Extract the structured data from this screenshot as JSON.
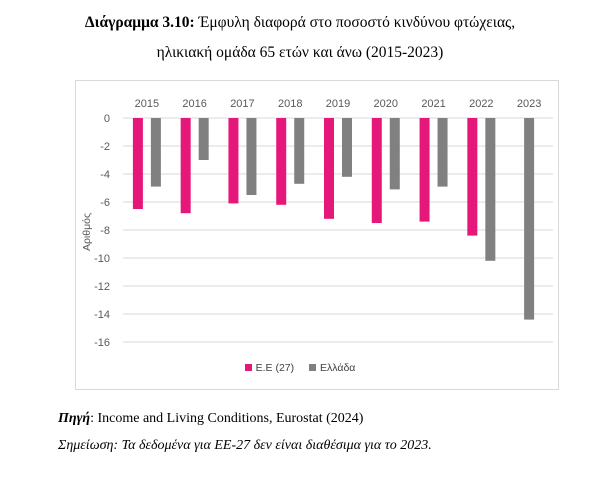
{
  "title": {
    "prefix": "Διάγραμμα 3.10:",
    "line1": "Έμφυλη διαφορά στο ποσοστό κινδύνου φτώχειας,",
    "line2": "ηλικιακή ομάδα 65 ετών και άνω (2015-2023)"
  },
  "source": {
    "label": "Πηγή",
    "text": ": Income and Living Conditions, Eurostat (2024)"
  },
  "note": "Σημείωση: Τα δεδομένα για ΕΕ-27 δεν είναι διαθέσιμα για το 2023.",
  "colors": {
    "eu": "#e6177b",
    "greece": "#808080",
    "grid": "#d9d9d9",
    "text": "#595959"
  },
  "chart_data": {
    "type": "bar",
    "categories": [
      "2015",
      "2016",
      "2017",
      "2018",
      "2019",
      "2020",
      "2021",
      "2022",
      "2023"
    ],
    "series": [
      {
        "name": "Ε.Ε (27)",
        "values": [
          -6.5,
          -6.8,
          -6.1,
          -6.2,
          -7.2,
          -7.5,
          -7.4,
          -8.4,
          null
        ]
      },
      {
        "name": "Ελλάδα",
        "values": [
          -4.9,
          -3.0,
          -5.5,
          -4.7,
          -4.2,
          -5.1,
          -4.9,
          -10.2,
          -14.4
        ]
      }
    ],
    "yticks": [
      "0",
      "-2",
      "-4",
      "-6",
      "-8",
      "-10",
      "-12",
      "-14",
      "-16"
    ],
    "ylabel": "Αριθμός",
    "ylim": [
      -16,
      0
    ],
    "grid": "horizontal",
    "legend": "bottom",
    "xaxis_position": "top"
  }
}
